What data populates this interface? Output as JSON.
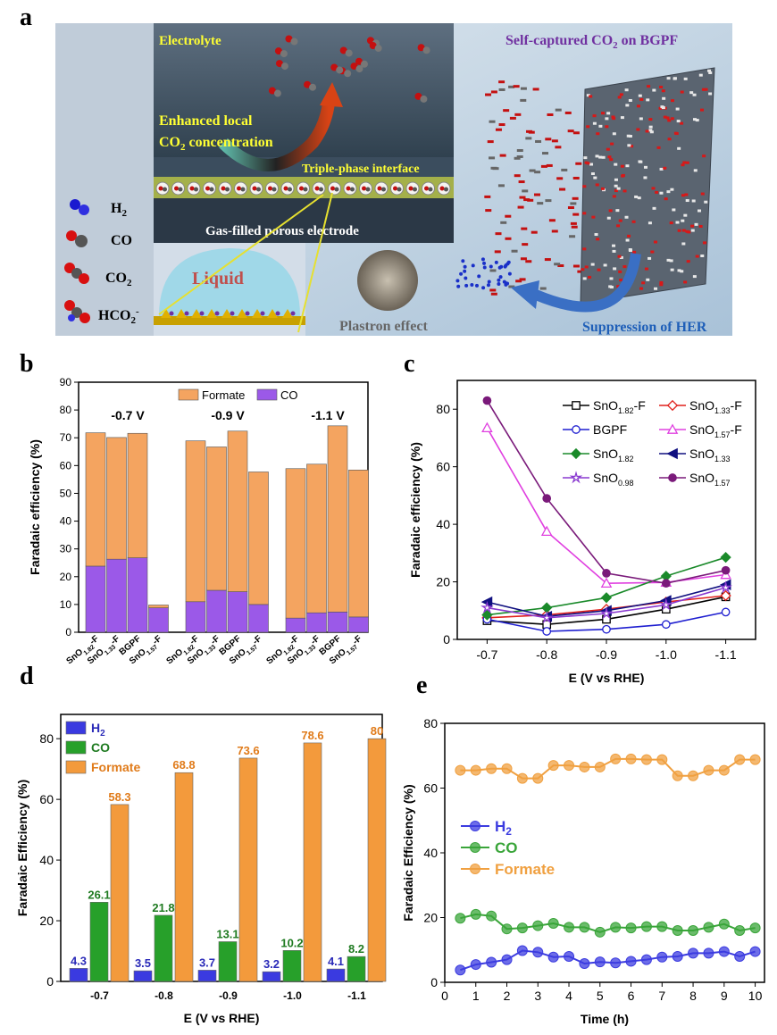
{
  "panel_labels": {
    "a": "a",
    "b": "b",
    "c": "c",
    "d": "d",
    "e": "e"
  },
  "schematic": {
    "electrolyte": "Electrolyte",
    "enhanced_line1": "Enhanced local",
    "enhanced_line2_pre": "CO",
    "enhanced_line2_sub": "2",
    "enhanced_line2_post": " concentration",
    "triple_phase": "Triple-phase interface",
    "gas_filled": "Gas-filled porous electrode",
    "liquid": "Liquid",
    "plastron": "Plastron effect",
    "self_captured_pre": "Self-captured CO",
    "self_captured_sub": "2",
    "self_captured_post": " on BGPF",
    "suppression": "Suppression of HER",
    "legend": {
      "h2": {
        "base": "H",
        "sub": "2",
        "sup": ""
      },
      "co": {
        "base": "CO",
        "sub": "",
        "sup": ""
      },
      "co2": {
        "base": "CO",
        "sub": "2",
        "sup": ""
      },
      "hco2": {
        "base": "HCO",
        "sub": "2",
        "sup": "-"
      }
    },
    "colors": {
      "bg_left": "#bcc8d6",
      "top_bg": "#3f5265",
      "sky": "#c9d9e6",
      "yellow": "#ffff33",
      "orange": "#e06a1c",
      "purple": "#7030a0",
      "blue": "#1f5fb8"
    }
  },
  "chart_data": [
    {
      "panel": "b",
      "type": "bar",
      "stacked": true,
      "ylabel": "Faradaic efficiency (%)",
      "ylim": [
        0,
        90
      ],
      "yticks": [
        "0",
        "10",
        "20",
        "30",
        "40",
        "50",
        "60",
        "70",
        "80",
        "90"
      ],
      "group_labels": [
        "-0.7 V",
        "-0.9 V",
        "-1.1 V"
      ],
      "categories": [
        {
          "base": "SnO",
          "sub": "1.82",
          "post": "-F"
        },
        {
          "base": "SnO",
          "sub": "1.33",
          "post": "-F"
        },
        {
          "base": "BGPF",
          "sub": "",
          "post": ""
        },
        {
          "base": "SnO",
          "sub": "1.57",
          "post": "-F"
        },
        {
          "base": "SnO",
          "sub": "1.82",
          "post": "-F"
        },
        {
          "base": "SnO",
          "sub": "1.33",
          "post": "-F"
        },
        {
          "base": "BGPF",
          "sub": "",
          "post": ""
        },
        {
          "base": "SnO",
          "sub": "1.57",
          "post": "-F"
        },
        {
          "base": "SnO",
          "sub": "1.82",
          "post": "-F"
        },
        {
          "base": "SnO",
          "sub": "1.33",
          "post": "-F"
        },
        {
          "base": "BGPF",
          "sub": "",
          "post": ""
        },
        {
          "base": "SnO",
          "sub": "1.57",
          "post": "-F"
        }
      ],
      "series": [
        {
          "name": "CO",
          "color": "#9b59e8",
          "values": [
            23.8,
            26.3,
            26.8,
            8.8,
            11.0,
            15.1,
            14.6,
            10.0,
            5.1,
            7.0,
            7.3,
            5.5
          ]
        },
        {
          "name": "Formate",
          "color": "#f4a460",
          "values": [
            48.0,
            43.8,
            44.8,
            1.0,
            57.9,
            51.6,
            57.8,
            47.7,
            53.8,
            53.5,
            67.0,
            52.9
          ]
        }
      ],
      "legend_order": [
        "Formate",
        "CO"
      ]
    },
    {
      "panel": "c",
      "type": "line",
      "xlabel": "E (V vs RHE)",
      "ylabel": "Faradaic efficiency (%)",
      "x": [
        -0.7,
        -0.8,
        -0.9,
        -1.0,
        -1.1
      ],
      "xticks": [
        "-0.7",
        "-0.8",
        "-0.9",
        "-1.0",
        "-1.1"
      ],
      "ylim": [
        0,
        90
      ],
      "yticks": [
        "0",
        "20",
        "40",
        "60",
        "80"
      ],
      "series": [
        {
          "base": "SnO",
          "sub": "1.82",
          "post": "-F",
          "color": "#000000",
          "marker": "square-open",
          "values": [
            6.5,
            5.2,
            7.0,
            10.5,
            14.8
          ]
        },
        {
          "base": "SnO",
          "sub": "1.33",
          "post": "-F",
          "color": "#e0201b",
          "marker": "diamond-open",
          "values": [
            7.5,
            8.5,
            10.5,
            13.0,
            15.2
          ]
        },
        {
          "base": "BGPF",
          "sub": "",
          "post": "",
          "color": "#1f1fd0",
          "marker": "circle-open",
          "values": [
            7.0,
            2.8,
            3.5,
            5.2,
            9.5
          ]
        },
        {
          "base": "SnO",
          "sub": "1.57",
          "post": "-F",
          "color": "#e040e0",
          "marker": "triangle-open",
          "values": [
            73.5,
            37.5,
            19.5,
            19.8,
            22.5
          ]
        },
        {
          "base": "SnO",
          "sub": "1.82",
          "post": "",
          "color": "#1a8a2a",
          "marker": "diamond",
          "values": [
            8.5,
            11.0,
            14.5,
            22.0,
            28.5
          ]
        },
        {
          "base": "SnO",
          "sub": "1.33",
          "post": "",
          "color": "#101080",
          "marker": "triangle-left",
          "values": [
            13.0,
            8.0,
            10.0,
            13.5,
            19.0
          ]
        },
        {
          "base": "SnO",
          "sub": "0.98",
          "post": "",
          "color": "#8a3ad0",
          "marker": "star-open",
          "values": [
            11.0,
            7.5,
            9.0,
            12.0,
            18.0
          ]
        },
        {
          "base": "SnO",
          "sub": "1.57",
          "post": "",
          "color": "#7a1a7a",
          "marker": "circle",
          "values": [
            83.0,
            49.0,
            23.0,
            19.5,
            24.0
          ]
        }
      ]
    },
    {
      "panel": "d",
      "type": "bar",
      "xlabel": "E (V vs RHE)",
      "ylabel": "Faradaic Efficiency (%)",
      "ylim": [
        0,
        88
      ],
      "yticks": [
        "0",
        "20",
        "40",
        "60",
        "80"
      ],
      "categories": [
        "-0.7",
        "-0.8",
        "-0.9",
        "-1.0",
        "-1.1"
      ],
      "series": [
        {
          "name": "H",
          "sub": "2",
          "color": "#3a3ae0",
          "label_color": "#2a2ab8",
          "values": [
            4.3,
            3.5,
            3.7,
            3.2,
            4.1
          ],
          "labels": [
            "4.3",
            "3.5",
            "3.7",
            "3.2",
            "4.1"
          ]
        },
        {
          "name": "CO",
          "sub": "",
          "color": "#27a02a",
          "label_color": "#1e7a20",
          "values": [
            26.1,
            21.8,
            13.1,
            10.2,
            8.2
          ],
          "labels": [
            "26.1",
            "21.8",
            "13.1",
            "10.2",
            "8.2"
          ]
        },
        {
          "name": "Formate",
          "sub": "",
          "color": "#f39a3c",
          "label_color": "#e07b1a",
          "values": [
            58.3,
            68.8,
            73.6,
            78.6,
            80
          ],
          "labels": [
            "58.3",
            "68.8",
            "73.6",
            "78.6",
            "80"
          ]
        }
      ]
    },
    {
      "panel": "e",
      "type": "line",
      "xlabel": "Time (h)",
      "ylabel": "Faradaic Efficiency (%)",
      "xlim": [
        0,
        10.3
      ],
      "xticks": [
        "0",
        "1",
        "2",
        "3",
        "4",
        "5",
        "6",
        "7",
        "8",
        "9",
        "10"
      ],
      "ylim": [
        0,
        80
      ],
      "yticks": [
        "0",
        "20",
        "40",
        "60",
        "80"
      ],
      "x": [
        0.5,
        1.0,
        1.5,
        2.0,
        2.5,
        3.0,
        3.5,
        4.0,
        4.5,
        5.0,
        5.5,
        6.0,
        6.5,
        7.0,
        7.5,
        8.0,
        8.5,
        9.0,
        9.5,
        10.0
      ],
      "series": [
        {
          "name": "H",
          "sub": "2",
          "color": "#3c3ce0",
          "values": [
            3.8,
            5.5,
            6.2,
            7.0,
            9.8,
            9.3,
            7.8,
            8.0,
            5.8,
            6.3,
            6.0,
            6.5,
            7.0,
            7.8,
            8.0,
            9.0,
            9.0,
            9.5,
            8.0,
            9.5
          ]
        },
        {
          "name": "CO",
          "sub": "",
          "color": "#3aa53a",
          "values": [
            19.8,
            21.0,
            20.5,
            16.5,
            16.8,
            17.5,
            18.2,
            17.0,
            17.0,
            15.5,
            17.0,
            16.8,
            17.2,
            17.2,
            16.0,
            16.0,
            17.0,
            18.0,
            16.0,
            16.8
          ]
        },
        {
          "name": "Formate",
          "sub": "",
          "color": "#f0a040",
          "values": [
            65.5,
            65.5,
            66.0,
            66.0,
            63.0,
            63.0,
            67.0,
            67.0,
            66.5,
            66.5,
            69.0,
            69.0,
            68.8,
            68.8,
            63.8,
            63.8,
            65.5,
            65.5,
            68.8,
            68.8
          ]
        }
      ]
    }
  ]
}
